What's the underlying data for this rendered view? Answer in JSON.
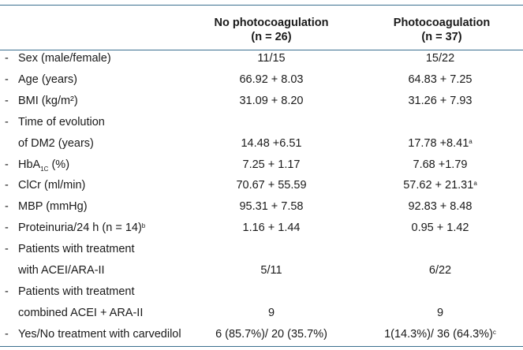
{
  "headers": {
    "col1_line1": "No photocoagulation",
    "col1_line2": "(n = 26)",
    "col2_line1": "Photocoagulation",
    "col2_line2": "(n = 37)"
  },
  "rows": [
    {
      "dash": "-",
      "label": "Sex (male/female)",
      "v1": "11/15",
      "v2": "15/22"
    },
    {
      "dash": "-",
      "label": "Age (years)",
      "v1": "66.92 + 8.03",
      "v2": "64.83 + 7.25"
    },
    {
      "dash": "-",
      "label": "BMI (kg/m²)",
      "v1": "31.09 + 8.20",
      "v2": "31.26 + 7.93"
    },
    {
      "dash": "-",
      "label": "Time of evolution",
      "v1": "",
      "v2": ""
    },
    {
      "dash": "",
      "label": "of DM2 (years)",
      "v1": "14.48 +6.51",
      "v2": "17.78 +8.41",
      "v2_sup": "a"
    },
    {
      "dash": "-",
      "label": "HbA",
      "label_sub": "1C",
      "label_after": " (%)",
      "v1": "7.25 + 1.17",
      "v2": "7.68 +1.79"
    },
    {
      "dash": "-",
      "label": "ClCr (ml/min)",
      "v1": "70.67 + 55.59",
      "v2": "57.62 + 21.31",
      "v2_sup": "a"
    },
    {
      "dash": "-",
      "label": "MBP (mmHg)",
      "v1": "95.31 + 7.58",
      "v2": "92.83 + 8.48"
    },
    {
      "dash": "-",
      "label": "Proteinuria/24 h (n = 14)",
      "label_sup": "b",
      "v1": "1.16 + 1.44",
      "v2": "0.95 + 1.42"
    },
    {
      "dash": "-",
      "label": "Patients with treatment",
      "v1": "",
      "v2": ""
    },
    {
      "dash": "",
      "label": "with ACEI/ARA-II",
      "v1": "5/11",
      "v2": "6/22"
    },
    {
      "dash": "-",
      "label": "Patients with treatment",
      "v1": "",
      "v2": ""
    },
    {
      "dash": "",
      "label": "combined ACEI + ARA-II",
      "v1": "9",
      "v2": "9"
    },
    {
      "dash": "-",
      "label": "Yes/No treatment with carvedilol",
      "v1": "6 (85.7%)/ 20 (35.7%)",
      "v2": "1(14.3%)/ 36 (64.3%)",
      "v2_sup": "c"
    }
  ]
}
